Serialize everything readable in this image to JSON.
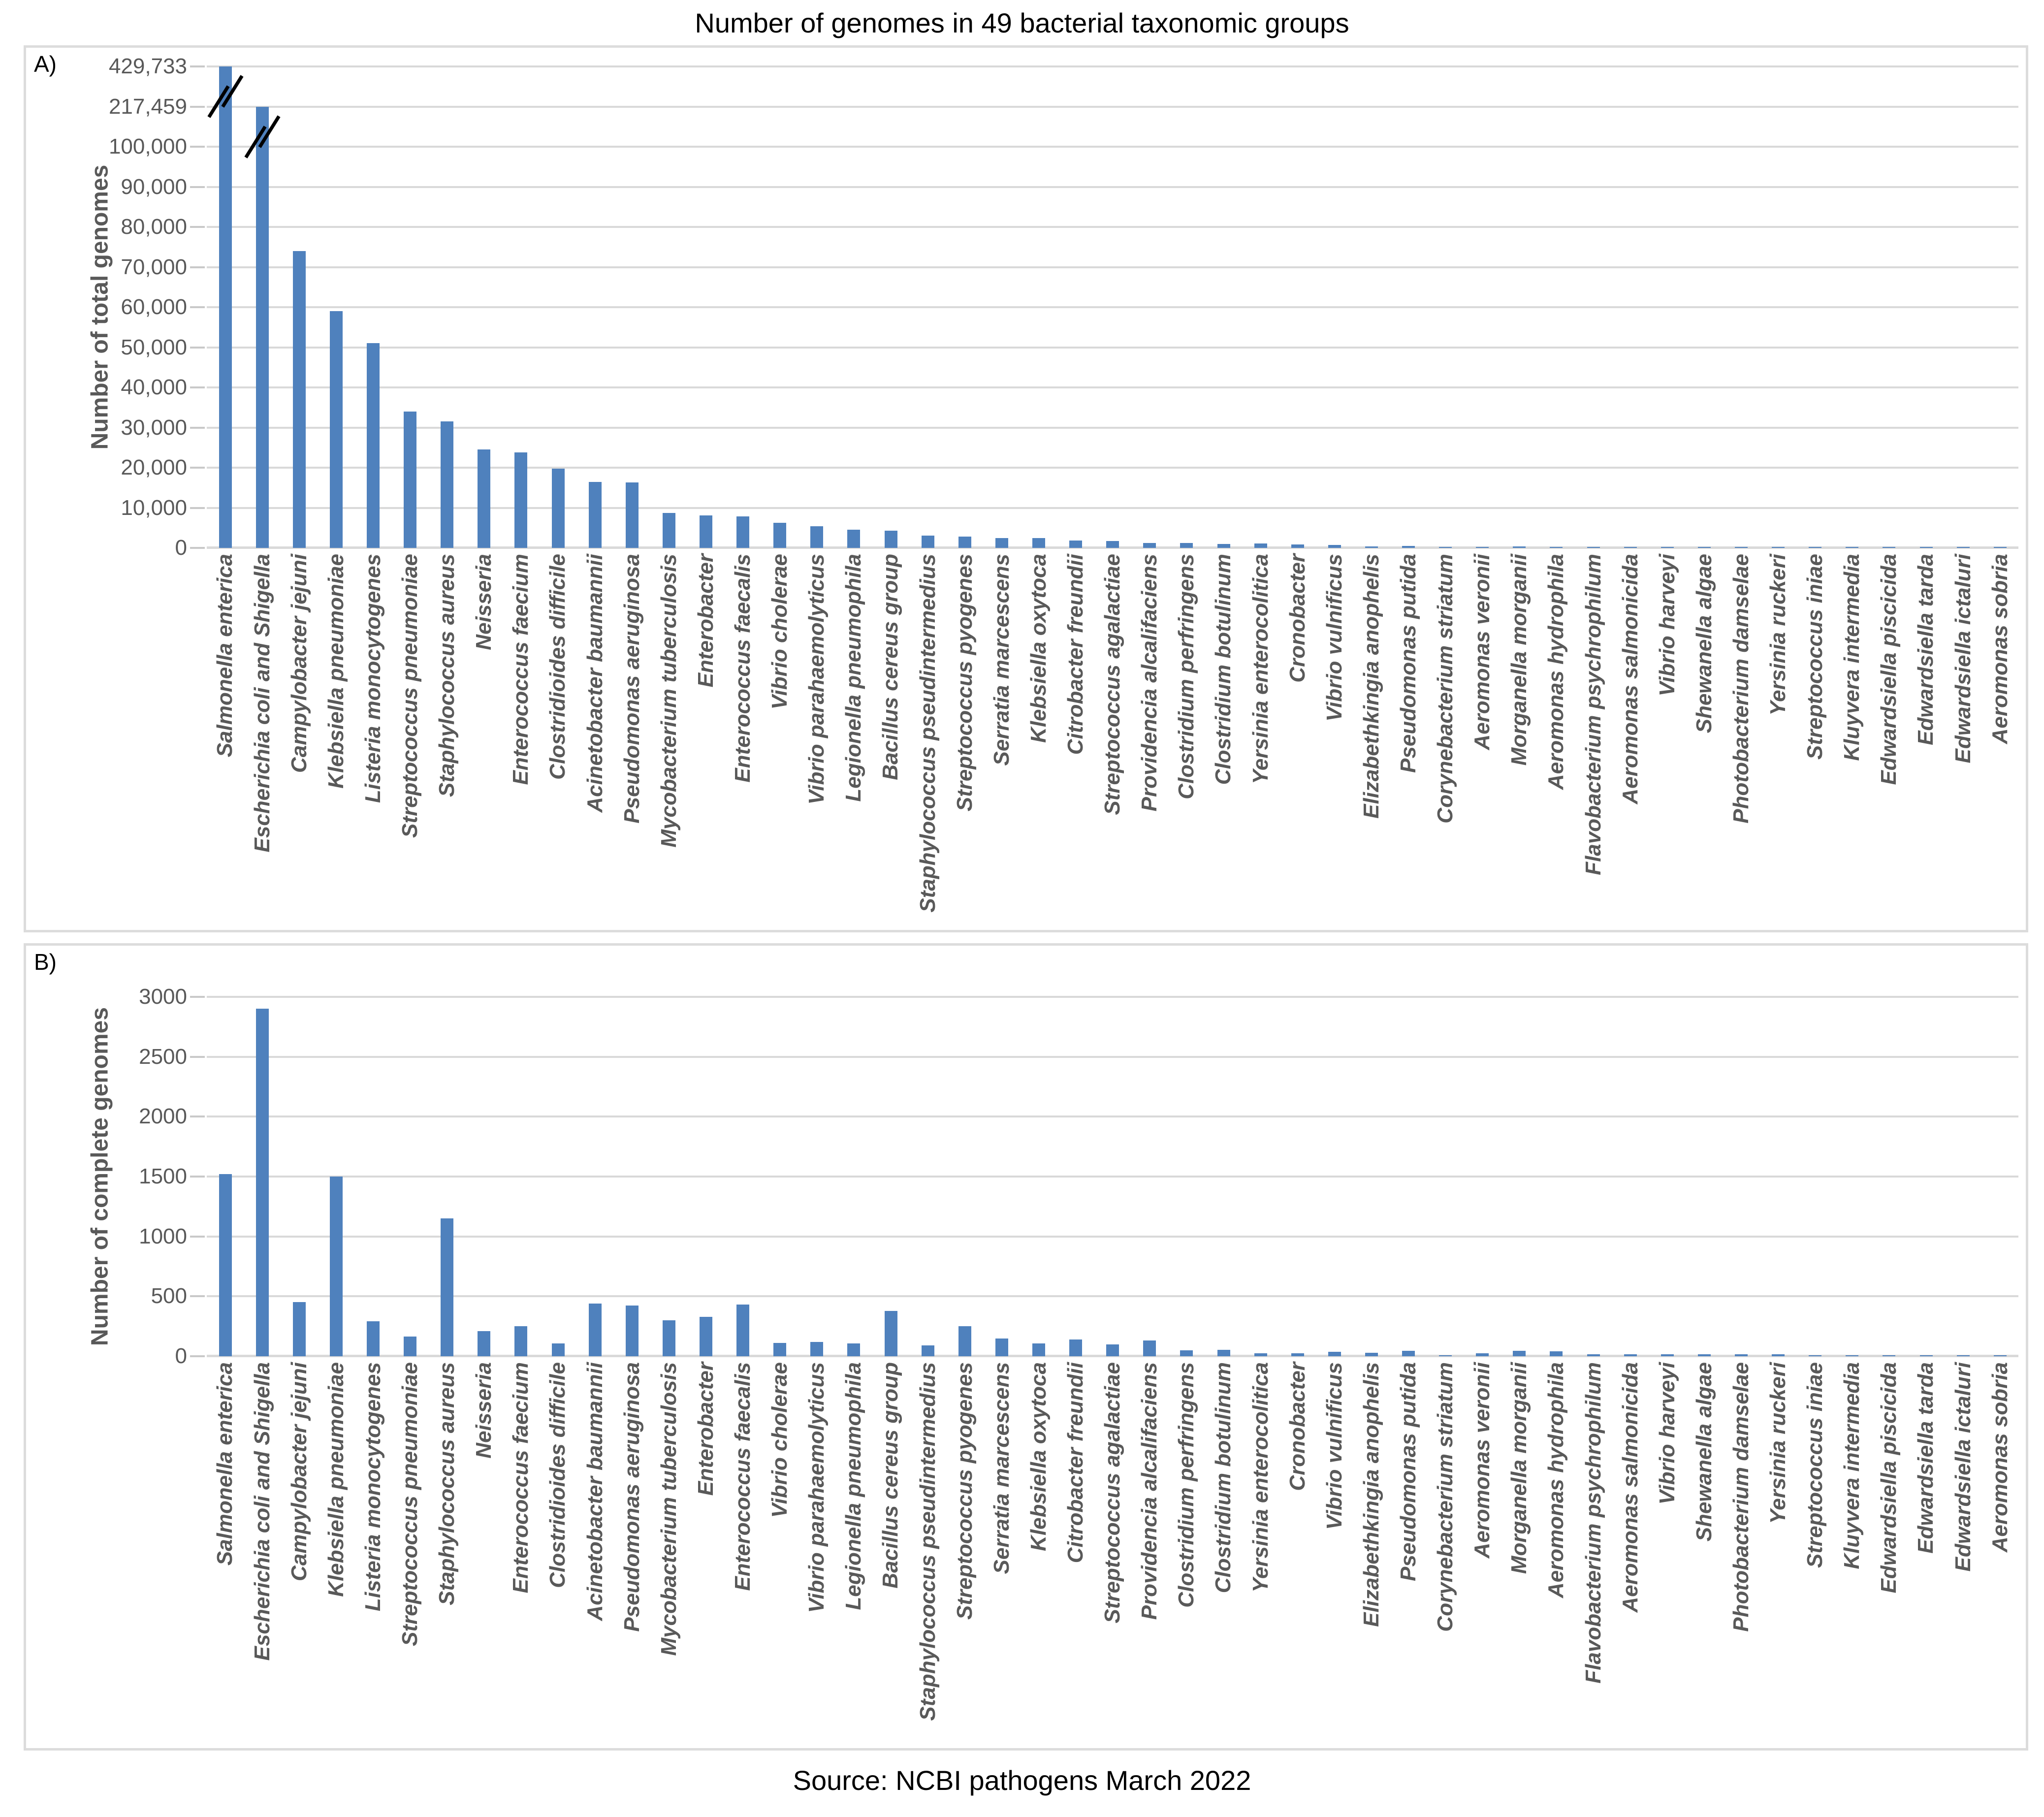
{
  "title": "Number of genomes in 49 bacterial taxonomic groups",
  "source_note": "Source: NCBI pathogens March 2022",
  "colors": {
    "bar": "#4f81bd",
    "gridline": "#d9d9d9",
    "axis_text": "#595959",
    "panel_border": "#dcdcdc",
    "title_text": "#000000"
  },
  "chart_data": [
    {
      "type": "bar",
      "panel": "A)",
      "title": "Number of genomes in 49 bacterial taxonomic groups",
      "xlabel": "",
      "ylabel": "Number of total genomes",
      "bar_color": "#4f81bd",
      "grid": true,
      "legend": "none",
      "y_ticks": [
        "429,733",
        "217,459",
        "100,000",
        "90,000",
        "80,000",
        "70,000",
        "60,000",
        "50,000",
        "40,000",
        "30,000",
        "20,000",
        "10,000",
        "0"
      ],
      "y_axis_note": "linear from 0 to 100,000 in 10,000 steps; axis broken above 100,000 with gridlines at 217,459 and 429,733",
      "axis_break_bars": [
        "Salmonella enterica",
        "Escherichia coli and Shigella"
      ],
      "categories": [
        "Salmonella enterica",
        "Escherichia coli and Shigella",
        "Campylobacter jejuni",
        "Klebsiella pneumoniae",
        "Listeria monocytogenes",
        "Streptococcus pneumoniae",
        "Staphylococcus aureus",
        "Neisseria",
        "Enterococcus faecium",
        "Clostridioides difficile",
        "Acinetobacter baumannii",
        "Pseudomonas aeruginosa",
        "Mycobacterium tuberculosis",
        "Enterobacter",
        "Enterococcus faecalis",
        "Vibrio cholerae",
        "Vibrio parahaemolyticus",
        "Legionella pneumophila",
        "Bacillus cereus group",
        "Staphylococcus pseudintermedius",
        "Streptococcus pyogenes",
        "Serratia marcescens",
        "Klebsiella oxytoca",
        "Citrobacter freundii",
        "Streptococcus agalactiae",
        "Providencia alcalifaciens",
        "Clostridium perfringens",
        "Clostridium botulinum",
        "Yersinia enterocolitica",
        "Cronobacter",
        "Vibrio vulnificus",
        "Elizabethkingia anophelis",
        "Pseudomonas putida",
        "Corynebacterium striatum",
        "Aeromonas veronii",
        "Morganella morganii",
        "Aeromonas hydrophila",
        "Flavobacterium psychrophilum",
        "Aeromonas salmonicida",
        "Vibrio harveyi",
        "Shewanella algae",
        "Photobacterium damselae",
        "Yersinia ruckeri",
        "Streptococcus iniae",
        "Kluyvera intermedia",
        "Edwardsiella piscicida",
        "Edwardsiella tarda",
        "Edwardsiella ictaluri",
        "Aeromonas sobria"
      ],
      "values": [
        429733,
        217459,
        74000,
        59000,
        51000,
        34000,
        31500,
        24500,
        23800,
        19700,
        16400,
        16300,
        8700,
        8100,
        7800,
        6300,
        5400,
        4500,
        4300,
        3100,
        2800,
        2500,
        2400,
        1900,
        1700,
        1200,
        1200,
        1000,
        1100,
        800,
        700,
        400,
        450,
        250,
        300,
        350,
        300,
        150,
        150,
        120,
        100,
        100,
        90,
        70,
        60,
        70,
        60,
        50,
        40
      ]
    },
    {
      "type": "bar",
      "panel": "B)",
      "title": "Number of genomes in 49 bacterial taxonomic groups",
      "xlabel": "",
      "ylabel": "Number of complete genomes",
      "bar_color": "#4f81bd",
      "grid": true,
      "legend": "none",
      "ylim": [
        0,
        3000
      ],
      "y_ticks": [
        "3000",
        "2500",
        "2000",
        "1500",
        "1000",
        "500",
        "0"
      ],
      "categories": [
        "Salmonella enterica",
        "Escherichia coli and Shigella",
        "Campylobacter jejuni",
        "Klebsiella pneumoniae",
        "Listeria monocytogenes",
        "Streptococcus pneumoniae",
        "Staphylococcus aureus",
        "Neisseria",
        "Enterococcus faecium",
        "Clostridioides difficile",
        "Acinetobacter baumannii",
        "Pseudomonas aeruginosa",
        "Mycobacterium tuberculosis",
        "Enterobacter",
        "Enterococcus faecalis",
        "Vibrio cholerae",
        "Vibrio parahaemolyticus",
        "Legionella pneumophila",
        "Bacillus cereus group",
        "Staphylococcus pseudintermedius",
        "Streptococcus pyogenes",
        "Serratia marcescens",
        "Klebsiella oxytoca",
        "Citrobacter freundii",
        "Streptococcus agalactiae",
        "Providencia alcalifaciens",
        "Clostridium perfringens",
        "Clostridium botulinum",
        "Yersinia enterocolitica",
        "Cronobacter",
        "Vibrio vulnificus",
        "Elizabethkingia anophelis",
        "Pseudomonas putida",
        "Corynebacterium striatum",
        "Aeromonas veronii",
        "Morganella morganii",
        "Aeromonas hydrophila",
        "Flavobacterium psychrophilum",
        "Aeromonas salmonicida",
        "Vibrio harveyi",
        "Shewanella algae",
        "Photobacterium damselae",
        "Yersinia ruckeri",
        "Streptococcus iniae",
        "Kluyvera intermedia",
        "Edwardsiella piscicida",
        "Edwardsiella tarda",
        "Edwardsiella ictaluri",
        "Aeromonas sobria"
      ],
      "values": [
        1520,
        2900,
        450,
        1500,
        290,
        165,
        1150,
        210,
        250,
        105,
        440,
        425,
        300,
        330,
        430,
        110,
        120,
        105,
        380,
        90,
        250,
        150,
        105,
        140,
        100,
        130,
        50,
        55,
        25,
        25,
        35,
        30,
        45,
        10,
        25,
        45,
        43,
        15,
        15,
        15,
        15,
        15,
        15,
        5,
        3,
        8,
        3,
        2,
        2
      ]
    }
  ]
}
